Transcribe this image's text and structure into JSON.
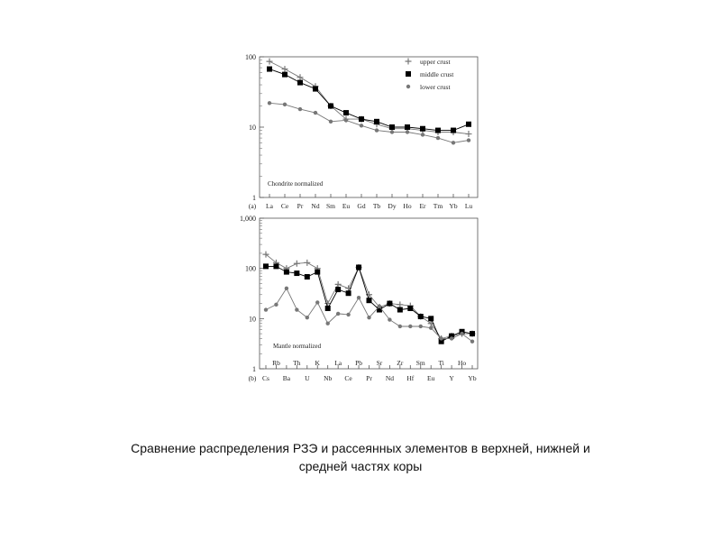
{
  "caption": {
    "line1": "Сравнение распределения РЗЭ и рассеянных элементов в верхней, нижней  и",
    "line2": "средней частях коры"
  },
  "colors": {
    "upper": "#777777",
    "middle": "#000000",
    "lower": "#777777"
  },
  "chart_data": [
    {
      "type": "line",
      "panel_label": "(a)",
      "annotation": "Chondrite normalized",
      "yscale": "log",
      "ylim": [
        1,
        100
      ],
      "ytick_labels": [
        "100",
        "10",
        "1"
      ],
      "categories": [
        "La",
        "Ce",
        "Pr",
        "Nd",
        "Sm",
        "Eu",
        "Gd",
        "Tb",
        "Dy",
        "Ho",
        "Er",
        "Tm",
        "Yb",
        "Lu"
      ],
      "legend_position": "top-right",
      "series": [
        {
          "name": "upper crust",
          "marker": "plus",
          "values": [
            86,
            67,
            51,
            38,
            20,
            13,
            13,
            11,
            9.5,
            9.5,
            9,
            8.5,
            8.5,
            8
          ]
        },
        {
          "name": "middle crust",
          "marker": "square",
          "values": [
            67,
            56,
            43,
            35,
            20,
            16,
            13,
            12,
            10,
            10,
            9.5,
            9,
            9,
            11
          ]
        },
        {
          "name": "lower crust",
          "marker": "circle",
          "values": [
            22,
            21,
            18,
            16,
            12,
            12.5,
            10.5,
            9,
            8.5,
            8.5,
            7.8,
            7,
            6,
            6.5
          ]
        }
      ]
    },
    {
      "type": "line",
      "panel_label": "(b)",
      "annotation": "Mantle normalized",
      "yscale": "log",
      "ylim": [
        1,
        1000
      ],
      "ytick_labels": [
        "1,000",
        "100",
        "10",
        "1"
      ],
      "categories": [
        "Cs",
        "Rb",
        "Ba",
        "Th",
        "U",
        "K",
        "Nb",
        "La",
        "Ce",
        "Pb",
        "Pr",
        "Sr",
        "Nd",
        "Zr",
        "Hf",
        "Sm",
        "Eu",
        "Ti",
        "Y",
        "Ho",
        "Yb"
      ],
      "tick_labels_upper": [
        "Rb",
        "Th",
        "K",
        "La",
        "Pb",
        "Sr",
        "Zr",
        "Sm",
        "Ti",
        "Ho"
      ],
      "tick_labels_lower": [
        "Cs",
        "Ba",
        "U",
        "Nb",
        "Ce",
        "Pr",
        "Nd",
        "Hf",
        "Eu",
        "Y",
        "Yb"
      ],
      "series": [
        {
          "name": "upper crust",
          "marker": "plus",
          "values": [
            190,
            130,
            100,
            125,
            130,
            100,
            20,
            48,
            40,
            105,
            30,
            17,
            20,
            19,
            18,
            11,
            8,
            4,
            4.5,
            5,
            5
          ]
        },
        {
          "name": "middle crust",
          "marker": "square",
          "values": [
            110,
            110,
            85,
            80,
            68,
            85,
            16,
            38,
            32,
            105,
            23,
            15,
            20,
            15,
            16,
            11,
            10,
            3.5,
            4.5,
            5.5,
            5
          ]
        },
        {
          "name": "lower crust",
          "marker": "circle",
          "values": [
            15,
            19,
            40,
            15,
            10.5,
            21,
            8,
            12.5,
            12,
            26,
            10.5,
            17.5,
            9.5,
            7,
            7,
            7,
            6.5,
            4,
            4,
            5,
            3.5
          ]
        }
      ]
    }
  ]
}
